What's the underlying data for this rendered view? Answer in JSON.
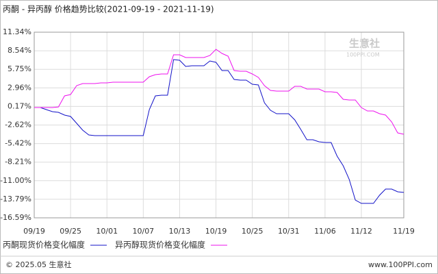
{
  "chart_data": {
    "type": "line",
    "title": "丙酮 - 异丙醇 价格趋势比较(2021-09-19 - 2021-11-19)",
    "categories": [
      "09/19",
      null,
      null,
      null,
      null,
      null,
      "09/25",
      null,
      null,
      null,
      null,
      null,
      "10/01",
      null,
      null,
      null,
      null,
      null,
      "10/07",
      null,
      null,
      null,
      null,
      null,
      "10/13",
      null,
      null,
      null,
      null,
      null,
      "10/19",
      null,
      null,
      null,
      null,
      null,
      "10/25",
      null,
      null,
      null,
      null,
      null,
      "10/31",
      null,
      null,
      null,
      null,
      null,
      "11/06",
      null,
      null,
      null,
      null,
      null,
      "11/12",
      null,
      null,
      null,
      null,
      null,
      null,
      "11/19"
    ],
    "series": [
      {
        "name": "丙酮现货价格变化幅度",
        "color": "#1010c8",
        "values": [
          0,
          0,
          -0.31,
          -0.62,
          -0.72,
          -1.13,
          -1.34,
          -2.37,
          -3.4,
          -4.12,
          -4.22,
          -4.22,
          -4.22,
          -4.22,
          -4.22,
          -4.22,
          -4.22,
          -4.22,
          -4.22,
          -0.31,
          1.76,
          1.86,
          1.86,
          7.22,
          7.11,
          6.19,
          6.29,
          6.29,
          6.29,
          7.01,
          6.81,
          5.57,
          5.57,
          4.23,
          4.13,
          4.13,
          3.51,
          3.4,
          0.72,
          -0.41,
          -0.92,
          -0.92,
          -0.92,
          -1.85,
          -3.29,
          -4.84,
          -4.84,
          -5.15,
          -5.25,
          -5.25,
          -7.31,
          -8.76,
          -10.82,
          -13.91,
          -14.42,
          -14.42,
          -14.42,
          -13.19,
          -12.26,
          -12.26,
          -12.67,
          -12.77
        ]
      },
      {
        "name": "异丙醇现货价格变化幅度",
        "color": "#ee10ee",
        "values": [
          0,
          0,
          0,
          0,
          0.1,
          1.76,
          1.96,
          3.3,
          3.61,
          3.61,
          3.61,
          3.71,
          3.71,
          3.82,
          3.82,
          3.82,
          3.82,
          3.82,
          3.82,
          4.64,
          4.95,
          5.05,
          5.05,
          7.94,
          7.94,
          7.53,
          7.53,
          7.53,
          7.53,
          7.84,
          8.76,
          8.15,
          7.73,
          5.57,
          5.47,
          5.47,
          5.05,
          4.54,
          3.3,
          2.58,
          2.48,
          2.48,
          2.48,
          3.2,
          3.2,
          2.79,
          2.79,
          2.79,
          2.37,
          2.37,
          2.27,
          1.24,
          1.14,
          1.14,
          0,
          -0.51,
          -0.51,
          -0.92,
          -1.13,
          -2.16,
          -3.81,
          -4.02
        ]
      }
    ],
    "ylim": [
      -16.59,
      11.34
    ],
    "yticks": [
      {
        "value": 11.34,
        "label": "11.34%"
      },
      {
        "value": 8.54,
        "label": "8.54%"
      },
      {
        "value": 5.75,
        "label": "5.75%"
      },
      {
        "value": 2.96,
        "label": "2.96%"
      },
      {
        "value": 0.17,
        "label": "0.17%"
      },
      {
        "value": -2.62,
        "label": "-2.62%"
      },
      {
        "value": -5.42,
        "label": "-5.42%"
      },
      {
        "value": -8.21,
        "label": "-8.21%"
      },
      {
        "value": -11.0,
        "label": "-11.00%"
      },
      {
        "value": -13.79,
        "label": "-13.79%"
      },
      {
        "value": -16.59,
        "label": "-16.59%"
      }
    ],
    "grid": true,
    "watermark": {
      "name": "生意社",
      "site": "100PPI.COM"
    },
    "footer": {
      "copyright": "© 2025.05 生意社",
      "url": "www.100PPI.com"
    }
  }
}
